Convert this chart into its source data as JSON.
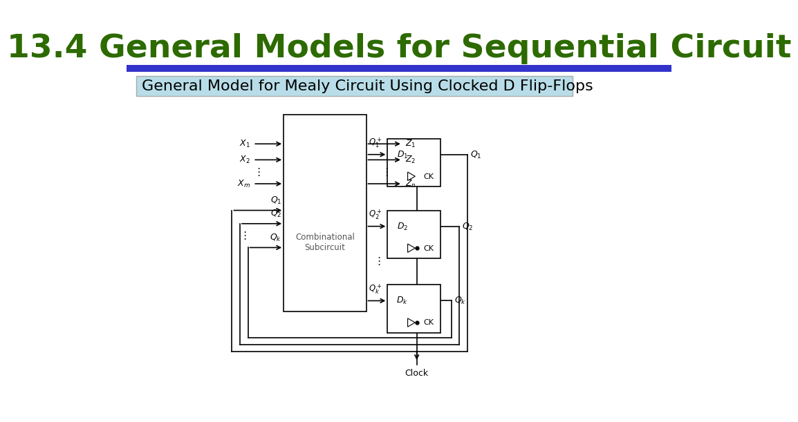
{
  "title": "13.4 General Models for Sequential Circuit",
  "title_color": "#2d6a00",
  "title_fontsize": 34,
  "subtitle": "General Model for Mealy Circuit Using Clocked D Flip-Flops",
  "subtitle_bg": "#b8dde8",
  "subtitle_fontsize": 16,
  "bg_color": "#ffffff",
  "blue_bar_color": "#3333cc",
  "clock_label": "Clock",
  "comb_label": "Combinational\nSubcircuit"
}
